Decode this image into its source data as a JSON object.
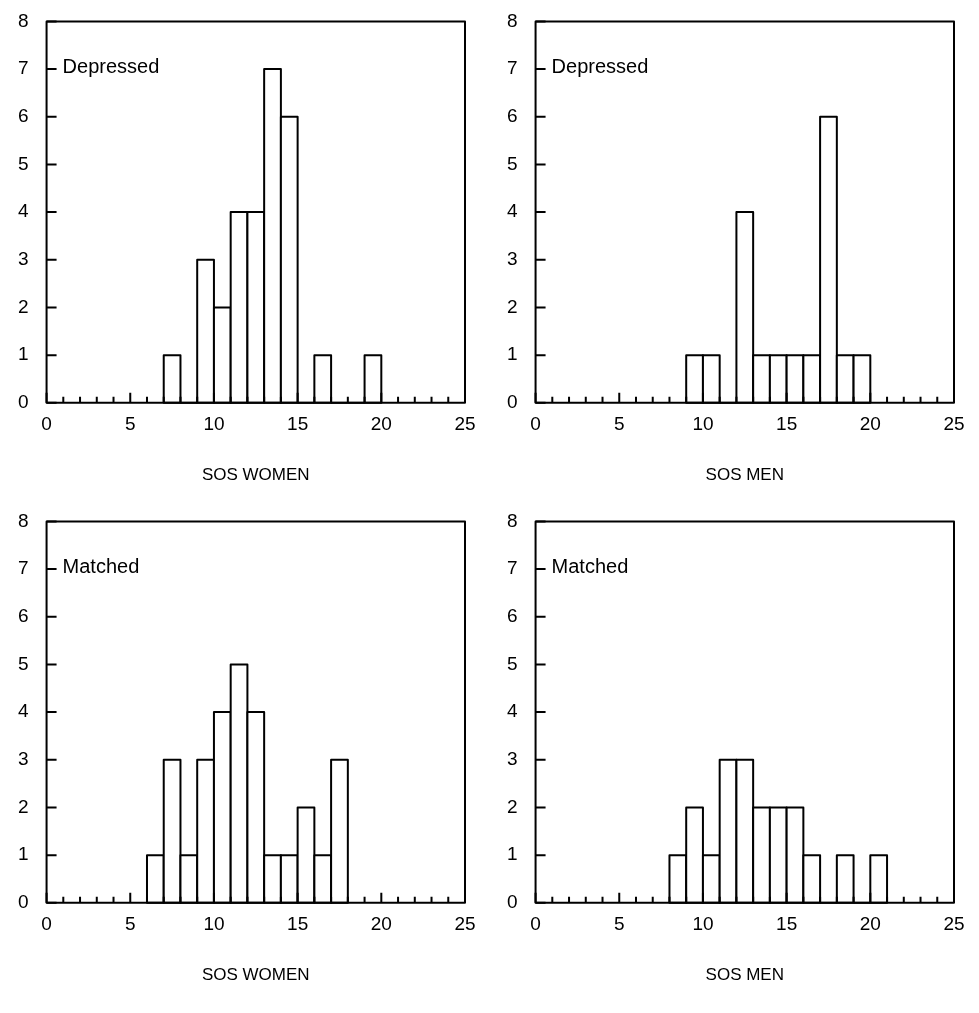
{
  "chart_data": [
    {
      "type": "histogram",
      "xlabel": "SOS WOMEN",
      "annotations": [
        "Depressed"
      ],
      "color": "#000000",
      "bins": [
        7,
        8,
        9,
        10,
        11,
        12,
        13,
        14,
        15,
        16,
        17,
        18,
        19,
        20
      ],
      "values": [
        1,
        0,
        3,
        2,
        4,
        4,
        7,
        6,
        0,
        1,
        0,
        0,
        1
      ],
      "xlim": [
        0,
        25
      ],
      "ylim": [
        0,
        8
      ],
      "xticks": [
        0,
        {
          "value": 1,
          "label": null
        },
        {
          "value": 2,
          "label": null
        },
        {
          "value": 3,
          "label": null
        },
        {
          "value": 4,
          "label": null
        },
        5,
        {
          "value": 6,
          "label": null
        },
        {
          "value": 7,
          "label": null
        },
        {
          "value": 8,
          "label": null
        },
        {
          "value": 9,
          "label": null
        },
        10,
        {
          "value": 11,
          "label": null
        },
        {
          "value": 12,
          "label": null
        },
        {
          "value": 13,
          "label": null
        },
        {
          "value": 14,
          "label": null
        },
        15,
        {
          "value": 16,
          "label": null
        },
        {
          "value": 17,
          "label": null
        },
        {
          "value": 18,
          "label": null
        },
        {
          "value": 19,
          "label": null
        },
        20,
        {
          "value": 21,
          "label": null
        },
        {
          "value": 22,
          "label": null
        },
        {
          "value": 23,
          "label": null
        },
        {
          "value": 24,
          "label": null
        },
        25
      ],
      "yticks": [
        0,
        1,
        2,
        3,
        4,
        5,
        6,
        7,
        8
      ],
      "grid": false,
      "legend": false
    },
    {
      "type": "histogram",
      "xlabel": "SOS MEN",
      "annotations": [
        "Depressed"
      ],
      "color": "#000000",
      "bins": [
        9,
        10,
        11,
        12,
        13,
        14,
        15,
        16,
        17,
        18,
        19,
        20
      ],
      "values": [
        1,
        1,
        0,
        4,
        1,
        1,
        1,
        1,
        6,
        1,
        1
      ],
      "xlim": [
        0,
        25
      ],
      "ylim": [
        0,
        8
      ],
      "xticks": [
        0,
        {
          "value": 1,
          "label": null
        },
        {
          "value": 2,
          "label": null
        },
        {
          "value": 3,
          "label": null
        },
        {
          "value": 4,
          "label": null
        },
        5,
        {
          "value": 6,
          "label": null
        },
        {
          "value": 7,
          "label": null
        },
        {
          "value": 8,
          "label": null
        },
        {
          "value": 9,
          "label": null
        },
        10,
        {
          "value": 11,
          "label": null
        },
        {
          "value": 12,
          "label": null
        },
        {
          "value": 13,
          "label": null
        },
        {
          "value": 14,
          "label": null
        },
        15,
        {
          "value": 16,
          "label": null
        },
        {
          "value": 17,
          "label": null
        },
        {
          "value": 18,
          "label": null
        },
        {
          "value": 19,
          "label": null
        },
        20,
        {
          "value": 21,
          "label": null
        },
        {
          "value": 22,
          "label": null
        },
        {
          "value": 23,
          "label": null
        },
        {
          "value": 24,
          "label": null
        },
        25
      ],
      "yticks": [
        0,
        1,
        2,
        3,
        4,
        5,
        6,
        7,
        8
      ],
      "grid": false,
      "legend": false
    },
    {
      "type": "histogram",
      "xlabel": "SOS WOMEN",
      "annotations": [
        "Matched"
      ],
      "color": "#000000",
      "bins": [
        6,
        7,
        8,
        9,
        10,
        11,
        12,
        13,
        14,
        15,
        16,
        17,
        18
      ],
      "values": [
        1,
        3,
        1,
        3,
        4,
        5,
        4,
        1,
        1,
        2,
        1,
        3
      ],
      "xlim": [
        0,
        25
      ],
      "ylim": [
        0,
        8
      ],
      "xticks": [
        0,
        {
          "value": 1,
          "label": null
        },
        {
          "value": 2,
          "label": null
        },
        {
          "value": 3,
          "label": null
        },
        {
          "value": 4,
          "label": null
        },
        5,
        {
          "value": 6,
          "label": null
        },
        {
          "value": 7,
          "label": null
        },
        {
          "value": 8,
          "label": null
        },
        {
          "value": 9,
          "label": null
        },
        10,
        {
          "value": 11,
          "label": null
        },
        {
          "value": 12,
          "label": null
        },
        {
          "value": 13,
          "label": null
        },
        {
          "value": 14,
          "label": null
        },
        15,
        {
          "value": 16,
          "label": null
        },
        {
          "value": 17,
          "label": null
        },
        {
          "value": 18,
          "label": null
        },
        {
          "value": 19,
          "label": null
        },
        20,
        {
          "value": 21,
          "label": null
        },
        {
          "value": 22,
          "label": null
        },
        {
          "value": 23,
          "label": null
        },
        {
          "value": 24,
          "label": null
        },
        25
      ],
      "yticks": [
        0,
        1,
        2,
        3,
        4,
        5,
        6,
        7,
        8
      ],
      "grid": false,
      "legend": false
    },
    {
      "type": "histogram",
      "xlabel": "SOS MEN",
      "annotations": [
        "Matched"
      ],
      "color": "#000000",
      "bins": [
        8,
        9,
        10,
        11,
        12,
        13,
        14,
        15,
        16,
        17,
        18,
        19,
        20,
        21
      ],
      "values": [
        1,
        2,
        1,
        3,
        3,
        2,
        2,
        2,
        1,
        0,
        1,
        0,
        1
      ],
      "xlim": [
        0,
        25
      ],
      "ylim": [
        0,
        8
      ],
      "xticks": [
        0,
        {
          "value": 1,
          "label": null
        },
        {
          "value": 2,
          "label": null
        },
        {
          "value": 3,
          "label": null
        },
        {
          "value": 4,
          "label": null
        },
        5,
        {
          "value": 6,
          "label": null
        },
        {
          "value": 7,
          "label": null
        },
        {
          "value": 8,
          "label": null
        },
        {
          "value": 9,
          "label": null
        },
        10,
        {
          "value": 11,
          "label": null
        },
        {
          "value": 12,
          "label": null
        },
        {
          "value": 13,
          "label": null
        },
        {
          "value": 14,
          "label": null
        },
        15,
        {
          "value": 16,
          "label": null
        },
        {
          "value": 17,
          "label": null
        },
        {
          "value": 18,
          "label": null
        },
        {
          "value": 19,
          "label": null
        },
        20,
        {
          "value": 21,
          "label": null
        },
        {
          "value": 22,
          "label": null
        },
        {
          "value": 23,
          "label": null
        },
        {
          "value": 24,
          "label": null
        },
        25
      ],
      "yticks": [
        0,
        1,
        2,
        3,
        4,
        5,
        6,
        7,
        8
      ],
      "grid": false,
      "legend": false
    }
  ]
}
